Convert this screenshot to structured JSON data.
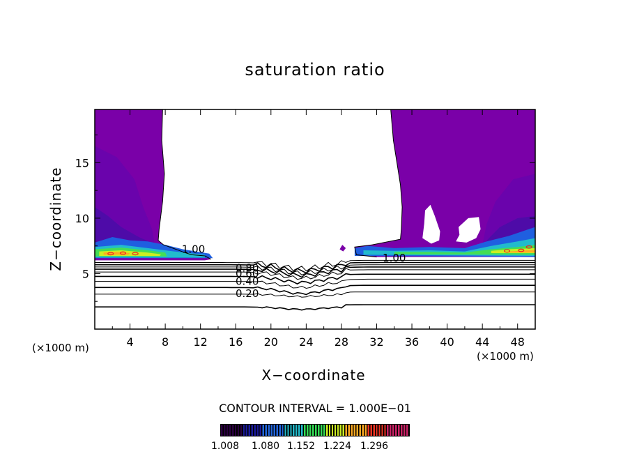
{
  "chart_data": {
    "type": "contour",
    "title": "saturation ratio",
    "xlabel": "X−coordinate",
    "ylabel": "Z−coordinate",
    "x_unit_left": "(×1000 m)",
    "x_unit_right": "(×1000 m)",
    "xlim": [
      0,
      50
    ],
    "ylim": [
      0,
      19.8
    ],
    "x_ticks": [
      "4",
      "8",
      "12",
      "16",
      "20",
      "24",
      "28",
      "32",
      "36",
      "40",
      "44",
      "48"
    ],
    "y_ticks": [
      "5",
      "10",
      "15"
    ],
    "contour_interval_text": "CONTOUR INTERVAL = 1.000E−01",
    "contour_levels_drawn": [
      0.1,
      0.2,
      0.3,
      0.4,
      0.5,
      0.6,
      0.7,
      0.8,
      0.9,
      1.0
    ],
    "contour_labels": [
      {
        "text": "1.00",
        "x": 11.2,
        "z": 7.2
      },
      {
        "text": "0.80",
        "x": 17.3,
        "z": 5.5
      },
      {
        "text": "0.60",
        "x": 17.3,
        "z": 5.0
      },
      {
        "text": "0.40",
        "x": 17.3,
        "z": 4.3
      },
      {
        "text": "0.20",
        "x": 17.3,
        "z": 3.2
      },
      {
        "text": "1.00",
        "x": 34.0,
        "z": 6.4
      }
    ],
    "colorbar": {
      "ticks": [
        "1.008",
        "1.080",
        "1.152",
        "1.224",
        "1.296"
      ],
      "colors": [
        "#2a0040",
        "#1a1a9a",
        "#2266dd",
        "#22bbcc",
        "#33dd55",
        "#ccee22",
        "#ffaa22",
        "#ee3322",
        "#cc2266"
      ]
    },
    "supersaturated_color": "#7a00a8"
  }
}
